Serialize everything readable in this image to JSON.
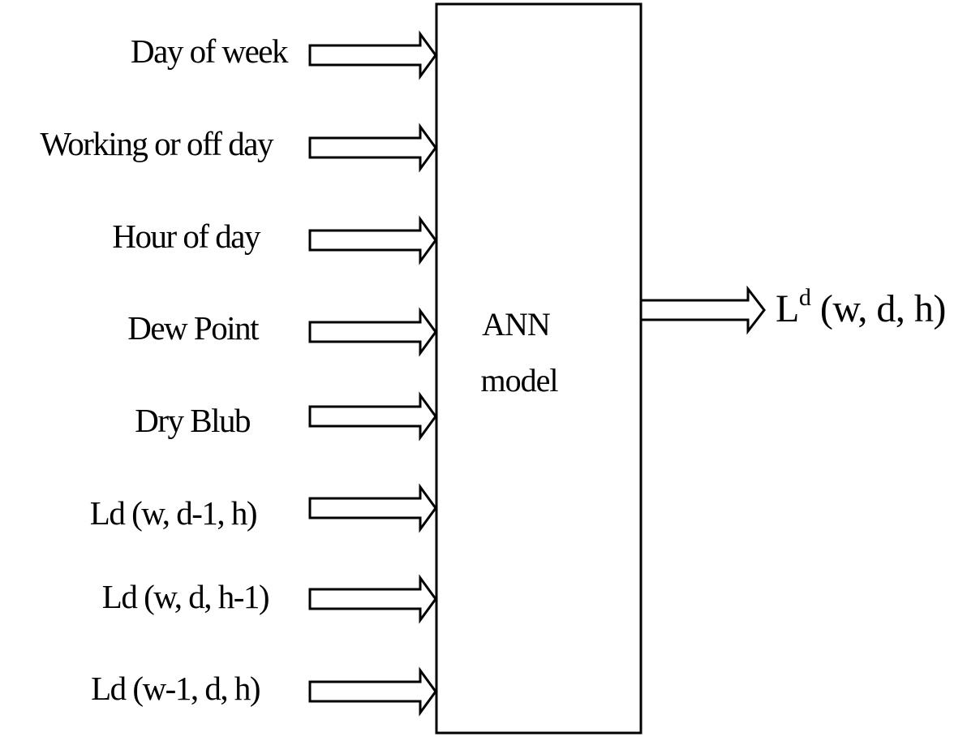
{
  "inputs": [
    {
      "label": "Day of week"
    },
    {
      "label": "Working or off day"
    },
    {
      "label": "Hour of day"
    },
    {
      "label": "Dew Point"
    },
    {
      "label": "Dry Blub"
    },
    {
      "label": "Ld (w, d-1, h)"
    },
    {
      "label": "Ld (w, d, h-1)"
    },
    {
      "label": "Ld (w-1, d, h)"
    }
  ],
  "model": {
    "line1": "ANN",
    "line2": "model"
  },
  "output": {
    "base": "L",
    "superscript": "d",
    "args": " (w, d, h)"
  }
}
